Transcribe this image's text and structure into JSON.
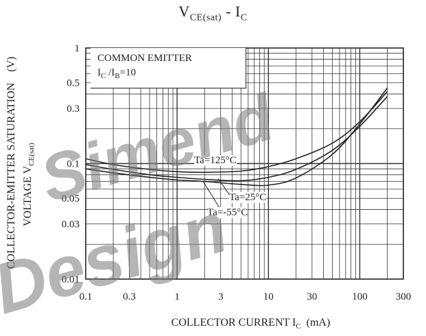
{
  "chart_data": {
    "type": "line",
    "title_main": "V",
    "title_main_sub": "CE(sat)",
    "title_sep": " - I",
    "title_sep_sub": "C",
    "ylabel_line1": "COLLECTOR-EMITTER SATURATION",
    "ylabel_line1_suffix": "(V)",
    "ylabel_line2": "VOLTAGE V",
    "ylabel_line2_sub": "CE(sat)",
    "xlabel": "COLLECTOR CURRENT I",
    "xlabel_sub": "C",
    "xlabel_unit": "(mA)",
    "x_scale": "log",
    "y_scale": "log",
    "xlim": [
      0.1,
      300
    ],
    "ylim": [
      0.01,
      1
    ],
    "x_ticks": [
      {
        "v": 0.1,
        "label": "0.1"
      },
      {
        "v": 0.3,
        "label": "0.3"
      },
      {
        "v": 1,
        "label": "1"
      },
      {
        "v": 3,
        "label": "3"
      },
      {
        "v": 10,
        "label": "10"
      },
      {
        "v": 30,
        "label": "30"
      },
      {
        "v": 100,
        "label": "100"
      },
      {
        "v": 300,
        "label": "300"
      }
    ],
    "y_ticks": [
      {
        "v": 1,
        "label": "1"
      },
      {
        "v": 0.5,
        "label": "0.5"
      },
      {
        "v": 0.3,
        "label": "0.3"
      },
      {
        "v": 0.1,
        "label": "0.1"
      },
      {
        "v": 0.05,
        "label": "0.05"
      },
      {
        "v": 0.03,
        "label": "0.03"
      },
      {
        "v": 0.01,
        "label": "0.01"
      }
    ],
    "grid": true,
    "legend_line1": "COMMON EMITTER",
    "legend_line2_a": "I",
    "legend_line2_a_sub": "C",
    "legend_line2_b": " /I",
    "legend_line2_b_sub": "B",
    "legend_line2_c": "=10",
    "series": [
      {
        "name": "Ta=125°C",
        "label": "Ta=125°C",
        "x": [
          0.1,
          0.2,
          0.5,
          1,
          2,
          5,
          10,
          20,
          50,
          100,
          200
        ],
        "y": [
          0.11,
          0.098,
          0.089,
          0.085,
          0.084,
          0.086,
          0.094,
          0.11,
          0.15,
          0.23,
          0.42
        ]
      },
      {
        "name": "Ta=25°C",
        "label": "Ta=25°C",
        "x": [
          0.1,
          0.2,
          0.5,
          1,
          2,
          5,
          10,
          20,
          50,
          100,
          200
        ],
        "y": [
          0.098,
          0.089,
          0.08,
          0.076,
          0.073,
          0.071,
          0.076,
          0.089,
          0.13,
          0.21,
          0.38
        ]
      },
      {
        "name": "Ta=-55°C",
        "label": "Ta=-55°C",
        "x": [
          0.1,
          0.2,
          0.5,
          1,
          2,
          5,
          10,
          20,
          50,
          100,
          200
        ],
        "y": [
          0.09,
          0.083,
          0.076,
          0.072,
          0.07,
          0.066,
          0.065,
          0.075,
          0.12,
          0.22,
          0.45
        ]
      }
    ]
  },
  "watermark": {
    "line1": "Simend",
    "line2": "Design"
  }
}
